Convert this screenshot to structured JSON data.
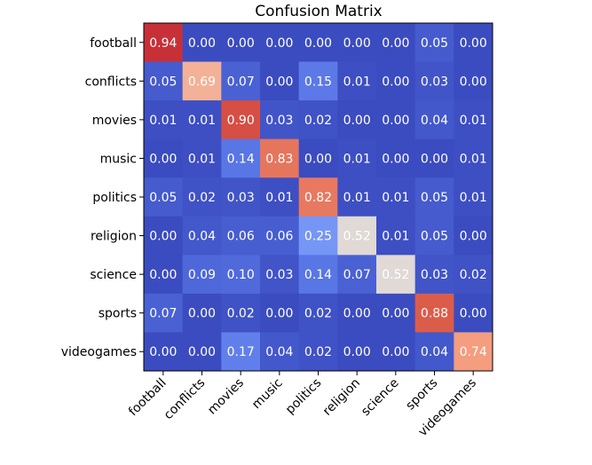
{
  "chart_data": {
    "type": "heatmap",
    "title": "Confusion Matrix",
    "xlabel": "",
    "ylabel": "",
    "categories": [
      "football",
      "conflicts",
      "movies",
      "music",
      "politics",
      "religion",
      "science",
      "sports",
      "videogames"
    ],
    "x_categories": [
      "football",
      "conflicts",
      "movies",
      "music",
      "politics",
      "religion",
      "science",
      "sports",
      "videogames"
    ],
    "y_categories": [
      "football",
      "conflicts",
      "movies",
      "music",
      "politics",
      "religion",
      "science",
      "sports",
      "videogames"
    ],
    "values": [
      [
        0.94,
        0.0,
        0.0,
        0.0,
        0.0,
        0.0,
        0.0,
        0.05,
        0.0
      ],
      [
        0.05,
        0.69,
        0.07,
        0.0,
        0.15,
        0.01,
        0.0,
        0.03,
        0.0
      ],
      [
        0.01,
        0.01,
        0.9,
        0.03,
        0.02,
        0.0,
        0.0,
        0.04,
        0.01
      ],
      [
        0.0,
        0.01,
        0.14,
        0.83,
        0.0,
        0.01,
        0.0,
        0.0,
        0.01
      ],
      [
        0.05,
        0.02,
        0.03,
        0.01,
        0.82,
        0.01,
        0.01,
        0.05,
        0.01
      ],
      [
        0.0,
        0.04,
        0.06,
        0.06,
        0.25,
        0.52,
        0.01,
        0.05,
        0.0
      ],
      [
        0.0,
        0.09,
        0.1,
        0.03,
        0.14,
        0.07,
        0.52,
        0.03,
        0.02
      ],
      [
        0.07,
        0.0,
        0.02,
        0.0,
        0.02,
        0.0,
        0.0,
        0.88,
        0.0
      ],
      [
        0.0,
        0.0,
        0.17,
        0.04,
        0.02,
        0.0,
        0.0,
        0.04,
        0.74
      ]
    ],
    "value_range": [
      0,
      1
    ],
    "colormap": "coolwarm",
    "grid": false
  }
}
